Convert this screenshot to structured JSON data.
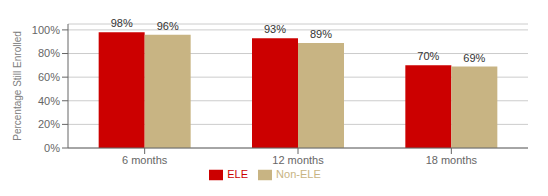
{
  "chart_data": {
    "type": "bar",
    "categories": [
      "6 months",
      "12 months",
      "18 months"
    ],
    "series": [
      {
        "name": "ELE",
        "color": "#CC0000",
        "values": [
          0.98,
          0.93,
          0.7
        ],
        "value_labels": [
          "98%",
          "93%",
          "70%"
        ]
      },
      {
        "name": "Non-ELE",
        "color": "#C8B483",
        "values": [
          0.96,
          0.89,
          0.69
        ],
        "value_labels": [
          "96%",
          "89%",
          "69%"
        ]
      }
    ],
    "ylabel": "Percentage Still Enrolled",
    "ylim": [
      0,
      1.05
    ],
    "yticks": [
      {
        "value": 0.0,
        "label": "0%"
      },
      {
        "value": 0.2,
        "label": "20%"
      },
      {
        "value": 0.4,
        "label": "40%"
      },
      {
        "value": 0.6,
        "label": "60%"
      },
      {
        "value": 0.8,
        "label": "80%"
      },
      {
        "value": 1.0,
        "label": "100%"
      }
    ],
    "grid": true,
    "legend": "bottom",
    "data_labels": true
  }
}
